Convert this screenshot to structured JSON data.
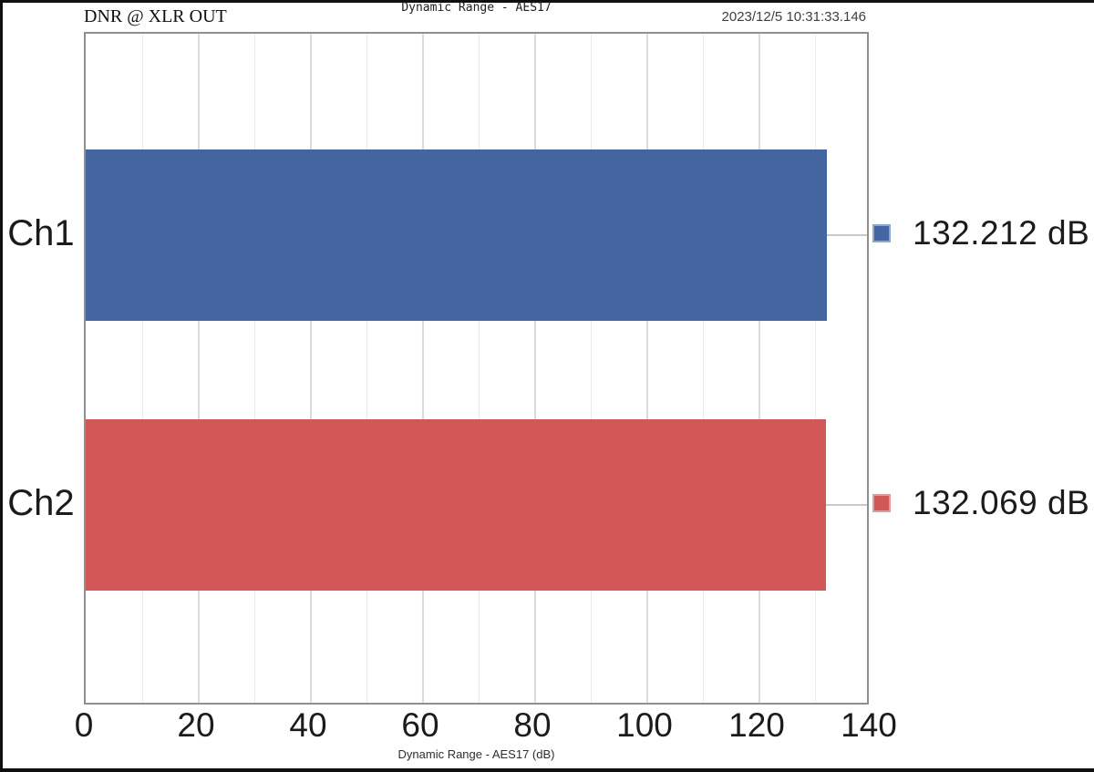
{
  "header": {
    "left_label": "DNR @ XLR OUT",
    "timestamp": "2023/12/5 10:31:33.146"
  },
  "chart_data": {
    "type": "bar",
    "orientation": "horizontal",
    "title": "Dynamic Range - AES17",
    "xlabel": "Dynamic Range - AES17 (dB)",
    "categories": [
      "Ch1",
      "Ch2"
    ],
    "values": [
      132.212,
      132.069
    ],
    "value_labels": [
      "132.212 dB",
      "132.069 dB"
    ],
    "bar_colors": [
      "#4565a0",
      "#d25757"
    ],
    "marker_border_colors": [
      "#90a7cd",
      "#e29c9c"
    ],
    "xlim": [
      0,
      140
    ],
    "xticks": [
      0,
      20,
      40,
      60,
      80,
      100,
      120,
      140
    ],
    "minor_grid_step": 10,
    "grid": true,
    "legend_position": "none",
    "value_label_position": "right-of-plot"
  }
}
